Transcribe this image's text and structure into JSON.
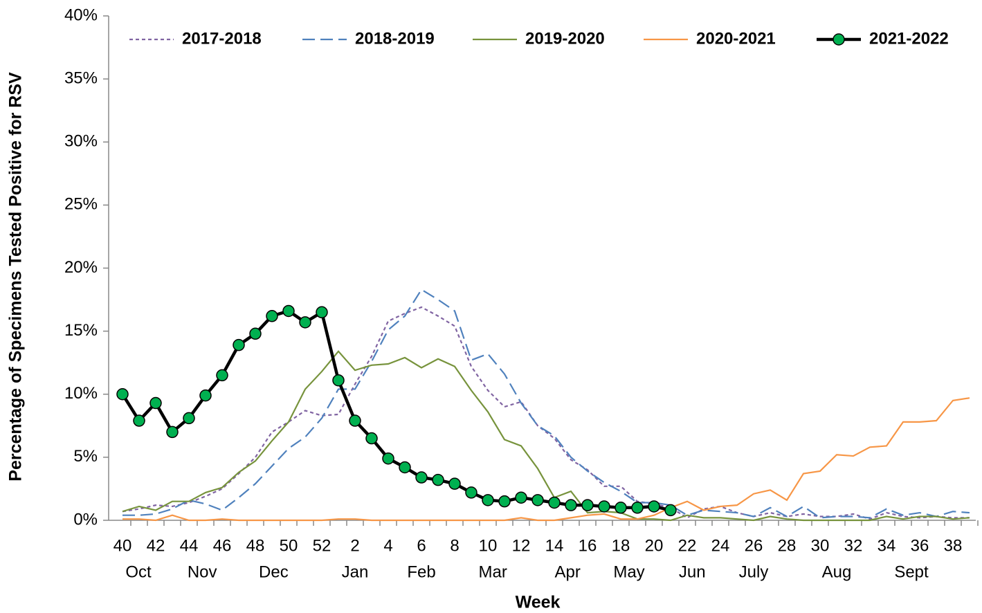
{
  "chart_data": {
    "type": "line",
    "y_label": "Percentage of Specimens Tested Positive for RSV",
    "x_label": "Week",
    "categories": [
      "40",
      null,
      "42",
      null,
      "44",
      null,
      "46",
      null,
      "48",
      null,
      "50",
      null,
      "52",
      null,
      "2",
      null,
      "4",
      null,
      "6",
      null,
      "8",
      null,
      "10",
      null,
      "12",
      null,
      "14",
      null,
      "16",
      null,
      "18",
      null,
      "20",
      null,
      "22",
      null,
      "24",
      null,
      "26",
      null,
      "28",
      null,
      "30",
      null,
      "32",
      null,
      "34",
      null,
      "36",
      null,
      "38",
      null
    ],
    "month_labels": [
      "Oct",
      "Nov",
      "Dec",
      "Jan",
      "Feb",
      "Mar",
      "Apr",
      "May",
      "Jun",
      "July",
      "Aug",
      "Sept"
    ],
    "ylim": [
      0,
      40
    ],
    "yticks": [
      {
        "value": 0,
        "label": "0%"
      },
      {
        "value": 5,
        "label": "5%"
      },
      {
        "value": 10,
        "label": "10%"
      },
      {
        "value": 15,
        "label": "15%"
      },
      {
        "value": 20,
        "label": "20%"
      },
      {
        "value": 25,
        "label": "25%"
      },
      {
        "value": 30,
        "label": "30%"
      },
      {
        "value": 35,
        "label": "35%"
      },
      {
        "value": 40,
        "label": "40%"
      }
    ],
    "grid": false,
    "legend": "top",
    "series": [
      {
        "name": "2017-2018",
        "color": "#8064a2",
        "style": "dotted",
        "values": [
          0.7,
          0.9,
          1.2,
          1.1,
          1.4,
          1.9,
          2.5,
          3.7,
          5.0,
          7.0,
          7.8,
          8.7,
          8.3,
          8.4,
          10.8,
          13.0,
          15.8,
          16.4,
          16.9,
          16.2,
          15.4,
          12.2,
          10.3,
          9.0,
          9.4,
          7.5,
          6.5,
          4.8,
          4.0,
          2.7,
          2.7,
          1.5,
          1.3,
          1.0,
          0.2,
          0.9,
          1.1,
          0.6,
          0.3,
          0.6,
          0.3,
          0.5,
          0.3,
          0.3,
          0.5,
          0.1,
          0.6,
          0.3,
          0.2,
          0.3,
          0.2,
          0.2
        ]
      },
      {
        "name": "2018-2019",
        "color": "#4f81bd",
        "style": "dashed",
        "values": [
          0.4,
          0.4,
          0.5,
          0.9,
          1.6,
          1.3,
          0.8,
          1.8,
          2.9,
          4.3,
          5.7,
          6.6,
          8.1,
          10.4,
          10.4,
          12.6,
          15.1,
          16.2,
          18.3,
          17.5,
          16.6,
          12.7,
          13.2,
          11.6,
          9.3,
          7.5,
          6.7,
          5.0,
          3.9,
          3.0,
          2.3,
          1.4,
          1.4,
          1.2,
          0.4,
          0.8,
          0.7,
          0.6,
          0.3,
          1.0,
          0.3,
          1.1,
          0.2,
          0.3,
          0.3,
          0.2,
          0.9,
          0.4,
          0.6,
          0.3,
          0.7,
          0.6
        ]
      },
      {
        "name": "2019-2020",
        "color": "#77933c",
        "style": "solid",
        "values": [
          0.7,
          1.1,
          0.8,
          1.5,
          1.5,
          2.2,
          2.6,
          3.8,
          4.7,
          6.3,
          7.8,
          10.4,
          11.8,
          13.4,
          11.9,
          12.3,
          12.4,
          12.9,
          12.1,
          12.8,
          12.2,
          10.3,
          8.6,
          6.4,
          5.9,
          4.1,
          1.8,
          2.3,
          0.6,
          0.7,
          0.6,
          0.1,
          0.1,
          0.0,
          0.4,
          0.2,
          0.2,
          0.1,
          0.0,
          0.3,
          0.1,
          0.0,
          0.0,
          0.0,
          0.0,
          0.0,
          0.3,
          0.1,
          0.3,
          0.3,
          0.1,
          0.2
        ]
      },
      {
        "name": "2020-2021",
        "color": "#f79646",
        "style": "solid",
        "values": [
          0.1,
          0.1,
          0.0,
          0.4,
          0.0,
          0.0,
          0.1,
          0.0,
          0.0,
          0.0,
          0.0,
          0.0,
          0.0,
          0.1,
          0.1,
          0.0,
          0.0,
          0.0,
          0.0,
          0.0,
          0.0,
          0.0,
          0.0,
          0.0,
          0.2,
          0.0,
          0.0,
          0.2,
          0.4,
          0.5,
          0.1,
          0.1,
          0.4,
          1.0,
          1.5,
          0.8,
          1.1,
          1.2,
          2.1,
          2.4,
          1.6,
          3.7,
          3.9,
          5.2,
          5.1,
          5.8,
          5.9,
          7.8,
          7.8,
          7.9,
          9.5,
          9.7
        ]
      },
      {
        "name": "2021-2022",
        "color": "#000000",
        "marker_color": "#00b050",
        "style": "bold",
        "marker": true,
        "values": [
          10.0,
          7.9,
          9.3,
          7.0,
          8.1,
          9.9,
          11.5,
          13.9,
          14.8,
          16.2,
          16.6,
          15.7,
          16.5,
          11.1,
          7.9,
          6.5,
          4.9,
          4.2,
          3.4,
          3.2,
          2.9,
          2.2,
          1.6,
          1.5,
          1.8,
          1.6,
          1.4,
          1.2,
          1.2,
          1.1,
          1.0,
          1.0,
          1.1,
          0.8,
          null,
          null,
          null,
          null,
          null,
          null,
          null,
          null,
          null,
          null,
          null,
          null,
          null,
          null,
          null,
          null,
          null,
          null
        ]
      }
    ]
  }
}
